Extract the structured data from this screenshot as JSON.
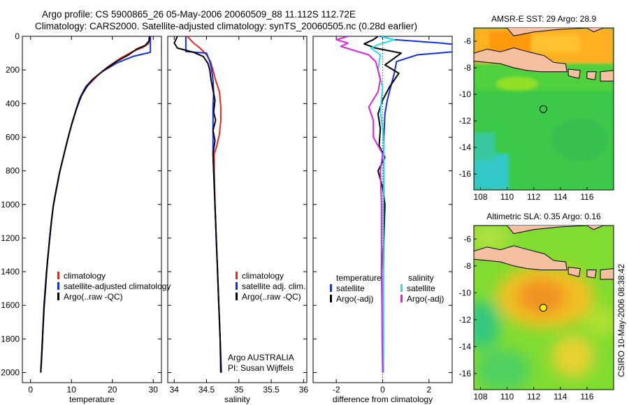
{
  "header": {
    "line1": "Argo profile: CS 5900865_26 05-May-2006 20060509_88 11.112S 112.72E",
    "line2": "Climatology: CARS2000. Satellite-adjusted climatology: synTS_20060505.nc (0.28d earlier)"
  },
  "credit": "CSIRO 10-May-2006 08:38:42",
  "colors": {
    "climatology": "#e8281e",
    "satellite": "#1030e8",
    "argo": "#000000",
    "sat_diff_s": "#20e0e8",
    "argo_diff_s": "#e020e0"
  },
  "chart_data": [
    {
      "type": "line",
      "name": "temperature-profile",
      "xlabel": "temperature",
      "xlim": [
        -2,
        32
      ],
      "ylim": [
        2060,
        0
      ],
      "xticks": [
        0,
        10,
        20,
        30
      ],
      "yticks": [
        0,
        200,
        400,
        600,
        800,
        1000,
        1200,
        1400,
        1600,
        1800,
        2000
      ],
      "legend": [
        "climatology",
        "satellite-adjusted climatology",
        "Argo(..raw -QC)"
      ],
      "series": [
        {
          "name": "climatology",
          "color": "#e8281e",
          "points": [
            [
              29.3,
              0
            ],
            [
              29.2,
              20
            ],
            [
              28.8,
              45
            ],
            [
              27.5,
              65
            ],
            [
              25,
              90
            ],
            [
              22,
              130
            ],
            [
              19,
              180
            ],
            [
              16.5,
              230
            ],
            [
              14.5,
              280
            ],
            [
              13,
              320
            ],
            [
              12,
              380
            ],
            [
              11,
              450
            ],
            [
              10,
              530
            ],
            [
              9,
              620
            ],
            [
              8,
              720
            ],
            [
              7,
              820
            ],
            [
              6.2,
              920
            ],
            [
              5.5,
              1020
            ],
            [
              5,
              1120
            ],
            [
              4.6,
              1220
            ],
            [
              4.2,
              1320
            ],
            [
              3.9,
              1420
            ],
            [
              3.6,
              1520
            ],
            [
              3.3,
              1620
            ],
            [
              3.1,
              1720
            ],
            [
              2.9,
              1820
            ],
            [
              2.7,
              1920
            ],
            [
              2.5,
              2000
            ]
          ]
        },
        {
          "name": "satellite-adjusted climatology",
          "color": "#1030e8",
          "points": [
            [
              29.3,
              0
            ],
            [
              29.3,
              50
            ],
            [
              29.3,
              95
            ],
            [
              25,
              120
            ],
            [
              21,
              160
            ],
            [
              17.5,
              210
            ],
            [
              15,
              260
            ],
            [
              13.5,
              300
            ],
            [
              12,
              370
            ],
            [
              11,
              450
            ],
            [
              10,
              530
            ],
            [
              9,
              620
            ],
            [
              8,
              720
            ],
            [
              7,
              820
            ],
            [
              6.2,
              920
            ],
            [
              5.5,
              1020
            ],
            [
              5,
              1120
            ],
            [
              4.6,
              1220
            ],
            [
              4.2,
              1320
            ],
            [
              3.9,
              1420
            ],
            [
              3.6,
              1520
            ],
            [
              3.3,
              1620
            ],
            [
              3.1,
              1720
            ],
            [
              2.9,
              1820
            ],
            [
              2.7,
              1920
            ],
            [
              2.5,
              2000
            ]
          ]
        },
        {
          "name": "Argo(..raw -QC)",
          "color": "#000000",
          "points": [
            [
              29.1,
              0
            ],
            [
              28.9,
              30
            ],
            [
              28,
              55
            ],
            [
              26,
              75
            ],
            [
              24,
              110
            ],
            [
              21,
              150
            ],
            [
              18,
              200
            ],
            [
              15.5,
              250
            ],
            [
              14,
              290
            ],
            [
              12.5,
              350
            ],
            [
              11.2,
              430
            ],
            [
              10.2,
              510
            ],
            [
              9.2,
              600
            ],
            [
              8.2,
              700
            ],
            [
              7.2,
              800
            ],
            [
              6.4,
              900
            ],
            [
              5.6,
              1000
            ],
            [
              5.1,
              1100
            ],
            [
              4.7,
              1200
            ],
            [
              4.3,
              1300
            ],
            [
              3.9,
              1400
            ],
            [
              3.6,
              1500
            ],
            [
              3.3,
              1600
            ],
            [
              3.1,
              1700
            ],
            [
              2.9,
              1800
            ],
            [
              2.7,
              1900
            ],
            [
              2.5,
              2000
            ]
          ]
        }
      ]
    },
    {
      "type": "line",
      "name": "salinity-profile",
      "xlabel": "salinity",
      "xlim": [
        33.9,
        36.05
      ],
      "ylim": [
        2060,
        0
      ],
      "xticks": [
        34,
        34.5,
        35,
        35.5,
        36
      ],
      "xticklabels": [
        "34",
        "34.5",
        "35",
        "35.5",
        "36"
      ],
      "legend": [
        "climatology",
        "satellite adj. clim.",
        "Argo(..raw -QC)"
      ],
      "annotation": [
        "Argo AUSTRALIA",
        "PI: Susan Wijffels"
      ],
      "series": [
        {
          "name": "climatology",
          "color": "#e8281e",
          "points": [
            [
              34.2,
              0
            ],
            [
              34.3,
              40
            ],
            [
              34.4,
              70
            ],
            [
              34.5,
              110
            ],
            [
              34.56,
              150
            ],
            [
              34.6,
              200
            ],
            [
              34.64,
              260
            ],
            [
              34.7,
              330
            ],
            [
              34.72,
              420
            ],
            [
              34.72,
              500
            ],
            [
              34.7,
              580
            ],
            [
              34.66,
              650
            ],
            [
              34.62,
              700
            ],
            [
              34.62,
              800
            ],
            [
              34.63,
              1000
            ],
            [
              34.65,
              1200
            ],
            [
              34.67,
              1400
            ],
            [
              34.69,
              1600
            ],
            [
              34.71,
              1800
            ],
            [
              34.72,
              2000
            ]
          ]
        },
        {
          "name": "satellite adj. clim.",
          "color": "#1030e8",
          "points": [
            [
              34.18,
              0
            ],
            [
              34.18,
              50
            ],
            [
              34.18,
              90
            ],
            [
              34.5,
              100
            ],
            [
              34.55,
              150
            ],
            [
              34.58,
              200
            ],
            [
              34.6,
              260
            ],
            [
              34.61,
              330
            ],
            [
              34.6,
              420
            ],
            [
              34.6,
              500
            ],
            [
              34.6,
              600
            ],
            [
              34.6,
              700
            ],
            [
              34.61,
              800
            ],
            [
              34.63,
              1000
            ],
            [
              34.65,
              1200
            ],
            [
              34.67,
              1400
            ],
            [
              34.69,
              1600
            ],
            [
              34.71,
              1800
            ],
            [
              34.73,
              2000
            ]
          ]
        },
        {
          "name": "Argo(..raw -QC)",
          "color": "#000000",
          "points": [
            [
              34.05,
              0
            ],
            [
              34.0,
              40
            ],
            [
              34.05,
              70
            ],
            [
              34.3,
              95
            ],
            [
              34.45,
              120
            ],
            [
              34.52,
              160
            ],
            [
              34.55,
              200
            ],
            [
              34.57,
              260
            ],
            [
              34.6,
              320
            ],
            [
              34.63,
              380
            ],
            [
              34.61,
              450
            ],
            [
              34.64,
              500
            ],
            [
              34.6,
              560
            ],
            [
              34.63,
              620
            ],
            [
              34.6,
              700
            ],
            [
              34.61,
              800
            ],
            [
              34.63,
              1000
            ],
            [
              34.65,
              1200
            ],
            [
              34.67,
              1400
            ],
            [
              34.69,
              1600
            ],
            [
              34.71,
              1800
            ],
            [
              34.72,
              2000
            ]
          ]
        }
      ]
    },
    {
      "type": "line",
      "name": "difference-from-climatology",
      "xlabel": "difference from climatology",
      "xlim": [
        -3,
        3
      ],
      "ylim": [
        2060,
        0
      ],
      "xticks": [
        -2,
        0,
        2
      ],
      "legend_left_title": "temperature",
      "legend_right_title": "salinity",
      "legend_left": [
        "satellite",
        "Argo(-adj)"
      ],
      "legend_right": [
        "satellite",
        "Argo(-adj)"
      ],
      "series": [
        {
          "name": "temperature satellite",
          "color": "#1030e8",
          "points": [
            [
              -0.1,
              0
            ],
            [
              0.5,
              20
            ],
            [
              2.5,
              40
            ],
            [
              3.2,
              50
            ],
            [
              3.0,
              70
            ],
            [
              3.2,
              90
            ],
            [
              1.5,
              110
            ],
            [
              0.6,
              150
            ],
            [
              0.5,
              220
            ],
            [
              0.35,
              300
            ],
            [
              0.2,
              380
            ],
            [
              0.1,
              460
            ],
            [
              0.05,
              600
            ],
            [
              0.05,
              800
            ],
            [
              0.05,
              1000
            ],
            [
              0.05,
              1200
            ],
            [
              0.03,
              1400
            ],
            [
              0.03,
              1600
            ],
            [
              0.03,
              1800
            ],
            [
              0.03,
              2000
            ]
          ]
        },
        {
          "name": "temperature Argo(-adj)",
          "color": "#000000",
          "points": [
            [
              -0.2,
              0
            ],
            [
              -0.4,
              20
            ],
            [
              -0.8,
              45
            ],
            [
              -0.3,
              70
            ],
            [
              0.8,
              100
            ],
            [
              0.5,
              130
            ],
            [
              0.1,
              170
            ],
            [
              0.7,
              220
            ],
            [
              0.3,
              300
            ],
            [
              0.0,
              380
            ],
            [
              -0.2,
              460
            ],
            [
              -0.1,
              550
            ],
            [
              -0.15,
              650
            ],
            [
              0.1,
              720
            ],
            [
              -0.2,
              800
            ],
            [
              0.0,
              900
            ],
            [
              0.1,
              1000
            ],
            [
              0.05,
              1200
            ],
            [
              -0.05,
              1400
            ],
            [
              0.0,
              1600
            ],
            [
              0.02,
              1800
            ],
            [
              0.0,
              2000
            ]
          ]
        },
        {
          "name": "salinity satellite",
          "color": "#20e0e8",
          "points": [
            [
              -0.05,
              0
            ],
            [
              0.5,
              20
            ],
            [
              -0.2,
              50
            ],
            [
              -0.5,
              70
            ],
            [
              -0.1,
              110
            ],
            [
              -0.2,
              200
            ],
            [
              0.0,
              300
            ],
            [
              -0.1,
              450
            ],
            [
              0.0,
              550
            ],
            [
              0.05,
              650
            ],
            [
              0.05,
              800
            ],
            [
              0.03,
              1000
            ],
            [
              0.03,
              1200
            ],
            [
              0.02,
              1400
            ],
            [
              0.02,
              1600
            ],
            [
              0.02,
              1800
            ],
            [
              0.02,
              2000
            ]
          ]
        },
        {
          "name": "salinity Argo(-adj)",
          "color": "#e020e0",
          "points": [
            [
              -1.5,
              0
            ],
            [
              -2.0,
              20
            ],
            [
              -1.5,
              40
            ],
            [
              -1.8,
              60
            ],
            [
              -1.2,
              85
            ],
            [
              -0.6,
              110
            ],
            [
              -0.3,
              150
            ],
            [
              -0.2,
              200
            ],
            [
              -0.1,
              260
            ],
            [
              -0.2,
              330
            ],
            [
              -0.6,
              420
            ],
            [
              -0.4,
              500
            ],
            [
              -0.4,
              600
            ],
            [
              0.0,
              700
            ],
            [
              -0.1,
              800
            ],
            [
              -0.05,
              1000
            ],
            [
              -0.05,
              1200
            ],
            [
              -0.05,
              1400
            ],
            [
              -0.03,
              1600
            ],
            [
              -0.02,
              1800
            ],
            [
              0.0,
              2000
            ]
          ]
        }
      ]
    },
    {
      "type": "heatmap",
      "name": "amsr-e-sst-map",
      "title": "AMSR-E SST: 29 Argo: 28.9",
      "xlim": [
        107.5,
        118
      ],
      "ylim": [
        -17.2,
        -5
      ],
      "xticks": [
        108,
        110,
        112,
        114,
        116
      ],
      "yticks": [
        -6,
        -8,
        -10,
        -12,
        -14,
        -16
      ],
      "marker": {
        "lon": 112.72,
        "lat": -11.112,
        "fill": "none"
      }
    },
    {
      "type": "heatmap",
      "name": "altimetric-sla-map",
      "title": "Altimetric SLA: 0.35 Argo: 0.16",
      "xlim": [
        107.5,
        118
      ],
      "ylim": [
        -17.2,
        -5
      ],
      "xticks": [
        108,
        110,
        112,
        114,
        116
      ],
      "yticks": [
        -6,
        -8,
        -10,
        -12,
        -14,
        -16
      ],
      "marker": {
        "lon": 112.72,
        "lat": -11.112,
        "fill": "#f0f000"
      }
    }
  ]
}
